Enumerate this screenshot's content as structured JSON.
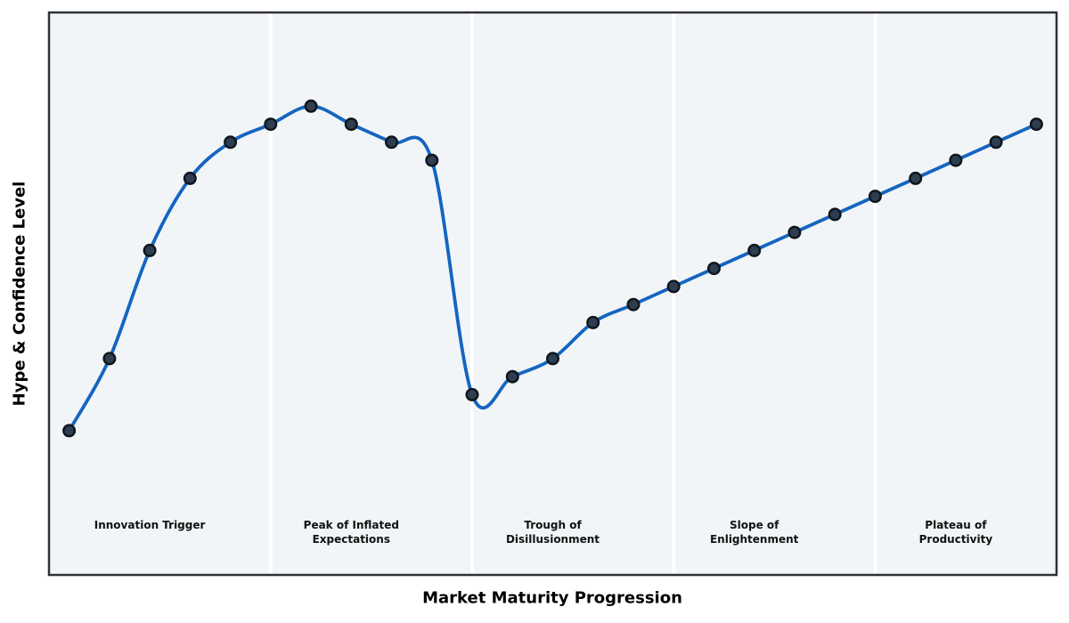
{
  "chart_data": {
    "type": "line",
    "title": "",
    "xlabel": "Market Maturity Progression",
    "ylabel": "Hype & Confidence Level",
    "x": [
      0,
      1,
      2,
      3,
      4,
      5,
      6,
      7,
      8,
      9,
      10,
      11,
      12,
      13,
      14,
      15,
      16,
      17,
      18,
      19,
      20,
      21,
      22,
      23,
      24
    ],
    "values": [
      20,
      30,
      45,
      55,
      60,
      62.5,
      65,
      62.5,
      60,
      57.5,
      25,
      27.5,
      30,
      35,
      37.5,
      40,
      42.5,
      45,
      47.5,
      50,
      52.5,
      55,
      57.5,
      60,
      62.5
    ],
    "xlim": [
      -0.5,
      24.5
    ],
    "ylim": [
      0,
      78
    ],
    "grid": false,
    "legend": "none",
    "ticks": "none",
    "curve_style": "smooth-spline",
    "phases": [
      {
        "label": "Innovation Trigger",
        "x_start": -0.5,
        "x_end": 5,
        "label_x": 2
      },
      {
        "label": "Peak of Inflated\nExpectations",
        "x_start": 5,
        "x_end": 10,
        "label_x": 7
      },
      {
        "label": "Trough of\nDisillusionment",
        "x_start": 10,
        "x_end": 15,
        "label_x": 12
      },
      {
        "label": "Slope of\nEnlightenment",
        "x_start": 15,
        "x_end": 20,
        "label_x": 17
      },
      {
        "label": "Plateau of\nProductivity",
        "x_start": 20,
        "x_end": 24.5,
        "label_x": 22
      }
    ],
    "colors": {
      "figure_background": "#ffffff",
      "band_fill": "#f1f5f8",
      "band_separator": "#ffffff",
      "plot_border": "#2e3136",
      "line": "#1565c0",
      "marker_fill": "#2c3e50",
      "marker_edge": "#10151b",
      "label_color": "#111111"
    }
  }
}
